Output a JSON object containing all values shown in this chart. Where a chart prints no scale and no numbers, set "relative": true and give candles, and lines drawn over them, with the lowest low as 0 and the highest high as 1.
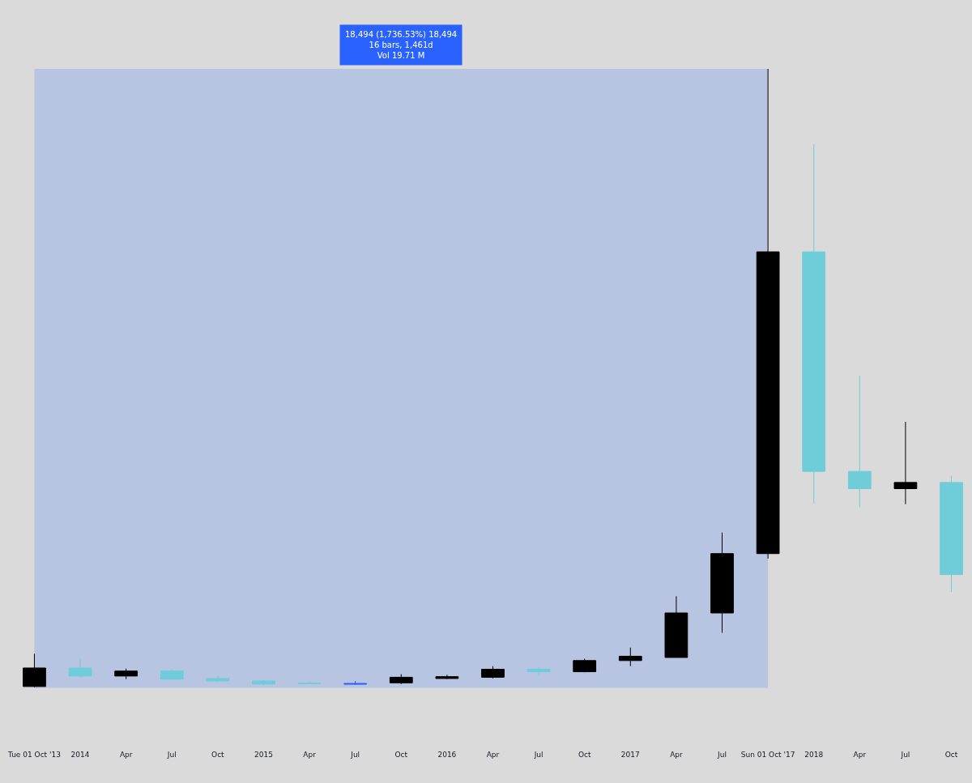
{
  "chart_data": {
    "type": "candlestick",
    "relative": true,
    "categories": [
      "Tue 01 Oct '13",
      "2014",
      "Apr",
      "Jul",
      "Oct",
      "2015",
      "Apr",
      "Jul",
      "Oct",
      "2016",
      "Apr",
      "Jul",
      "Oct",
      "2017",
      "Apr",
      "Jul",
      "Sun 01 Oct '17",
      "2018",
      "Apr",
      "Jul",
      "Oct"
    ],
    "ohlc": [
      [
        0.001,
        0.054,
        0,
        0.031
      ],
      [
        0.031,
        0.046,
        0.016,
        0.018
      ],
      [
        0.018,
        0.03,
        0.013,
        0.026
      ],
      [
        0.026,
        0.029,
        0.012,
        0.013
      ],
      [
        0.014,
        0.018,
        0.008,
        0.01
      ],
      [
        0.01,
        0.012,
        0.003,
        0.005
      ],
      [
        0.006,
        0.009,
        0.005,
        0.006
      ],
      [
        0.006,
        0.01,
        0.004,
        0.005
      ],
      [
        0.007,
        0.021,
        0.005,
        0.016
      ],
      [
        0.014,
        0.02,
        0.013,
        0.017
      ],
      [
        0.016,
        0.034,
        0.014,
        0.029
      ],
      [
        0.029,
        0.033,
        0.018,
        0.025
      ],
      [
        0.025,
        0.046,
        0.024,
        0.043
      ],
      [
        0.043,
        0.064,
        0.034,
        0.05
      ],
      [
        0.048,
        0.147,
        0.048,
        0.12
      ],
      [
        0.12,
        0.25,
        0.088,
        0.216
      ],
      [
        0.216,
        1,
        0.208,
        0.704
      ],
      [
        0.704,
        0.878,
        0.297,
        0.349
      ],
      [
        0.349,
        0.504,
        0.291,
        0.321
      ],
      [
        0.321,
        0.429,
        0.296,
        0.331
      ],
      [
        0.331,
        0.342,
        0.154,
        0.182
      ]
    ],
    "colors": [
      "#000000",
      "#6ecdd9",
      "#000000",
      "#6ecdd9",
      "#6ecdd9",
      "#6ecdd9",
      "#6ecdd9",
      "#2a5cff",
      "#000000",
      "#000000",
      "#000000",
      "#6ecdd9",
      "#000000",
      "#000000",
      "#000000",
      "#000000",
      "#000000",
      "#6ecdd9",
      "#6ecdd9",
      "#000000",
      "#6ecdd9"
    ],
    "bands": [
      {
        "axis": "x",
        "from": "Tue 01 Oct '13",
        "to": "Sun 01 Oct '17",
        "label": "18,494 (1,736.53%) 18,494\n16 bars, 1,461d\nVol 19.71 M",
        "color": "#b5c3e3"
      }
    ],
    "grid": false,
    "legend": false
  }
}
